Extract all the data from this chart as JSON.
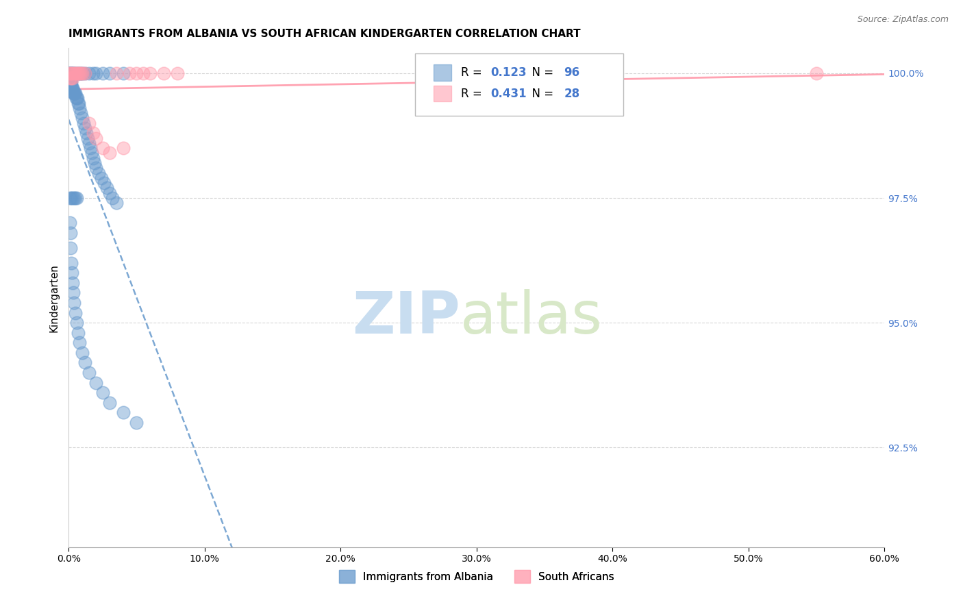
{
  "title": "IMMIGRANTS FROM ALBANIA VS SOUTH AFRICAN KINDERGARTEN CORRELATION CHART",
  "source": "Source: ZipAtlas.com",
  "ylabel": "Kindergarten",
  "ytick_values": [
    0.925,
    0.95,
    0.975,
    1.0
  ],
  "xlim": [
    0.0,
    0.6
  ],
  "ylim": [
    0.905,
    1.005
  ],
  "legend_albania": "Immigrants from Albania",
  "legend_southafrica": "South Africans",
  "r_albania": "0.123",
  "n_albania": "96",
  "r_southafrica": "0.431",
  "n_southafrica": "28",
  "color_albania": "#6699cc",
  "color_southafrica": "#ff99aa",
  "watermark_zip": "ZIP",
  "watermark_atlas": "atlas",
  "watermark_color_zip": "#c8ddf0",
  "watermark_color_atlas": "#d8e8c8",
  "ab_x": [
    0.0008,
    0.001,
    0.0012,
    0.0015,
    0.0018,
    0.001,
    0.0011,
    0.0013,
    0.0016,
    0.002,
    0.0008,
    0.001,
    0.0012,
    0.0014,
    0.0017,
    0.002,
    0.0022,
    0.0025,
    0.003,
    0.0032,
    0.0035,
    0.004,
    0.0042,
    0.0045,
    0.005,
    0.0055,
    0.006,
    0.0065,
    0.007,
    0.0075,
    0.008,
    0.009,
    0.01,
    0.011,
    0.012,
    0.013,
    0.014,
    0.015,
    0.016,
    0.017,
    0.018,
    0.019,
    0.02,
    0.022,
    0.024,
    0.026,
    0.028,
    0.03,
    0.032,
    0.035,
    0.001,
    0.0015,
    0.002,
    0.0025,
    0.003,
    0.0035,
    0.004,
    0.005,
    0.006,
    0.007,
    0.008,
    0.009,
    0.01,
    0.012,
    0.015,
    0.018,
    0.02,
    0.025,
    0.03,
    0.04,
    0.001,
    0.0012,
    0.0015,
    0.002,
    0.0025,
    0.003,
    0.0035,
    0.004,
    0.005,
    0.006,
    0.007,
    0.008,
    0.01,
    0.012,
    0.015,
    0.02,
    0.025,
    0.03,
    0.04,
    0.05,
    0.001,
    0.002,
    0.003,
    0.004,
    0.005,
    0.006
  ],
  "ab_y": [
    1.0,
    1.0,
    1.0,
    1.0,
    1.0,
    0.999,
    0.999,
    0.999,
    0.999,
    0.999,
    0.998,
    0.998,
    0.998,
    0.998,
    0.998,
    0.997,
    0.997,
    0.997,
    0.997,
    0.997,
    0.996,
    0.996,
    0.996,
    0.996,
    0.996,
    0.995,
    0.995,
    0.995,
    0.994,
    0.994,
    0.993,
    0.992,
    0.991,
    0.99,
    0.989,
    0.988,
    0.987,
    0.986,
    0.985,
    0.984,
    0.983,
    0.982,
    0.981,
    0.98,
    0.979,
    0.978,
    0.977,
    0.976,
    0.975,
    0.974,
    1.0,
    1.0,
    1.0,
    1.0,
    1.0,
    1.0,
    1.0,
    1.0,
    1.0,
    1.0,
    1.0,
    1.0,
    1.0,
    1.0,
    1.0,
    1.0,
    1.0,
    1.0,
    1.0,
    1.0,
    0.97,
    0.968,
    0.965,
    0.962,
    0.96,
    0.958,
    0.956,
    0.954,
    0.952,
    0.95,
    0.948,
    0.946,
    0.944,
    0.942,
    0.94,
    0.938,
    0.936,
    0.934,
    0.932,
    0.93,
    0.975,
    0.975,
    0.975,
    0.975,
    0.975,
    0.975
  ],
  "sa_x": [
    0.0008,
    0.001,
    0.0015,
    0.002,
    0.0025,
    0.003,
    0.004,
    0.005,
    0.006,
    0.007,
    0.008,
    0.009,
    0.01,
    0.012,
    0.015,
    0.018,
    0.02,
    0.025,
    0.03,
    0.035,
    0.04,
    0.045,
    0.05,
    0.055,
    0.06,
    0.07,
    0.08,
    0.55
  ],
  "sa_y": [
    1.0,
    0.999,
    1.0,
    0.999,
    1.0,
    0.999,
    1.0,
    1.0,
    1.0,
    1.0,
    1.0,
    1.0,
    1.0,
    1.0,
    0.99,
    0.988,
    0.987,
    0.985,
    0.984,
    1.0,
    0.985,
    1.0,
    1.0,
    1.0,
    1.0,
    1.0,
    1.0,
    1.0
  ]
}
